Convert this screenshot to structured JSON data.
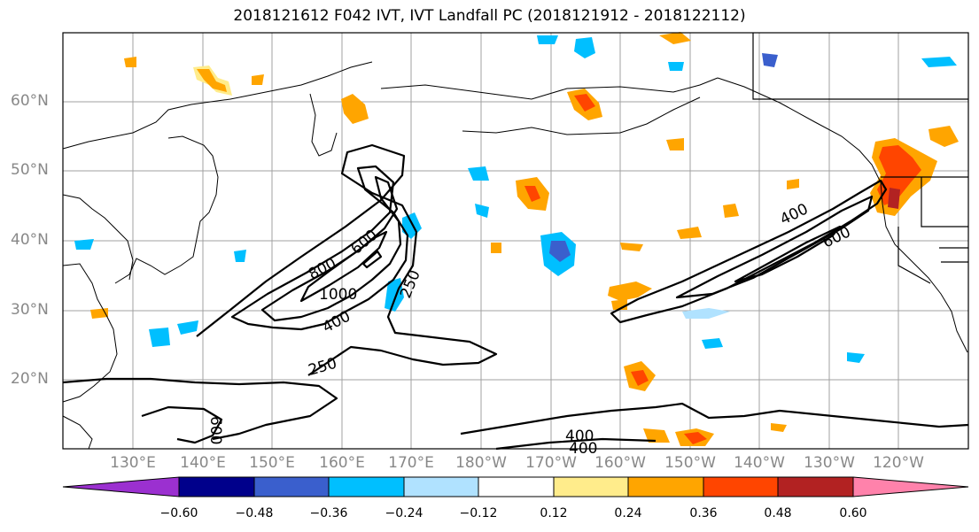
{
  "title": "2018121612 F042 IVT, IVT Landfall PC (2018121912 - 2018122112)",
  "latitude_labels": [
    "60°N",
    "50°N",
    "40°N",
    "30°N",
    "20°N"
  ],
  "longitude_labels": [
    "130°E",
    "140°E",
    "150°E",
    "160°E",
    "170°E",
    "180°W",
    "170°W",
    "160°W",
    "150°W",
    "140°W",
    "130°W",
    "120°W"
  ],
  "contour_labels": [
    "800",
    "600",
    "1000",
    "400",
    "250",
    "250",
    "400",
    "600",
    "400",
    "400",
    "600"
  ],
  "colorbar": {
    "tick_labels": [
      "−0.60",
      "−0.48",
      "−0.36",
      "−0.24",
      "−0.12",
      "0.12",
      "0.24",
      "0.36",
      "0.48",
      "0.60"
    ],
    "colors": [
      "#9b30d0",
      "#00008b",
      "#3a5fcd",
      "#00bfff",
      "#b0e2ff",
      "#ffffff",
      "#ffec8b",
      "#ffa500",
      "#ff4500",
      "#b22222",
      "#ff82ab"
    ]
  }
}
